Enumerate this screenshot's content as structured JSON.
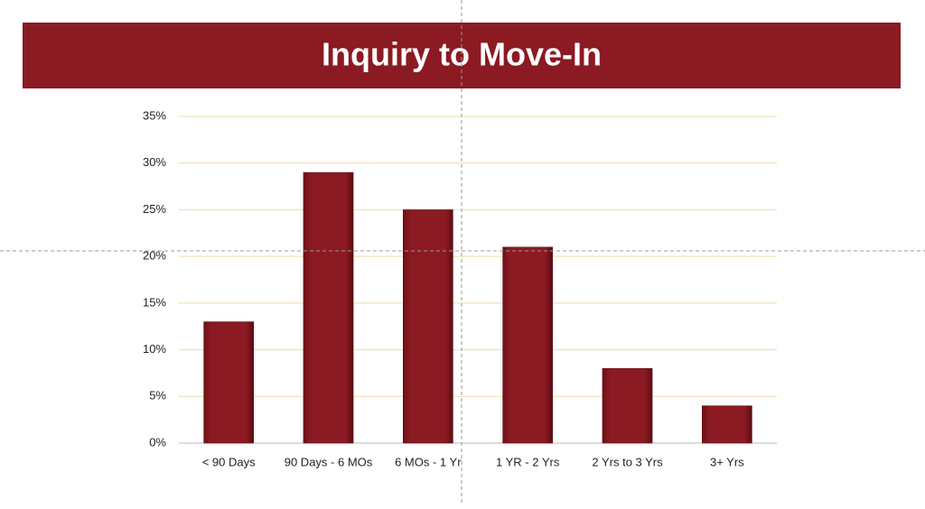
{
  "chart_data": {
    "type": "bar",
    "title": "Inquiry to Move-In",
    "categories": [
      "< 90 Days",
      "90 Days - 6 MOs",
      "6 MOs - 1 Yr",
      "1 YR - 2 Yrs",
      "2 Yrs to 3 Yrs",
      "3+ Yrs"
    ],
    "values": [
      13,
      29,
      25,
      21,
      8,
      4
    ],
    "color": "#8b1a22",
    "ylim": [
      0,
      35
    ],
    "yticks": [
      {
        "value": 0,
        "label": "0%"
      },
      {
        "value": 5,
        "label": "5%"
      },
      {
        "value": 10,
        "label": "10%"
      },
      {
        "value": 15,
        "label": "15%"
      },
      {
        "value": 20,
        "label": "20%"
      },
      {
        "value": 25,
        "label": "25%"
      },
      {
        "value": 30,
        "label": "30%"
      },
      {
        "value": 35,
        "label": "35%"
      }
    ],
    "grid": true
  }
}
